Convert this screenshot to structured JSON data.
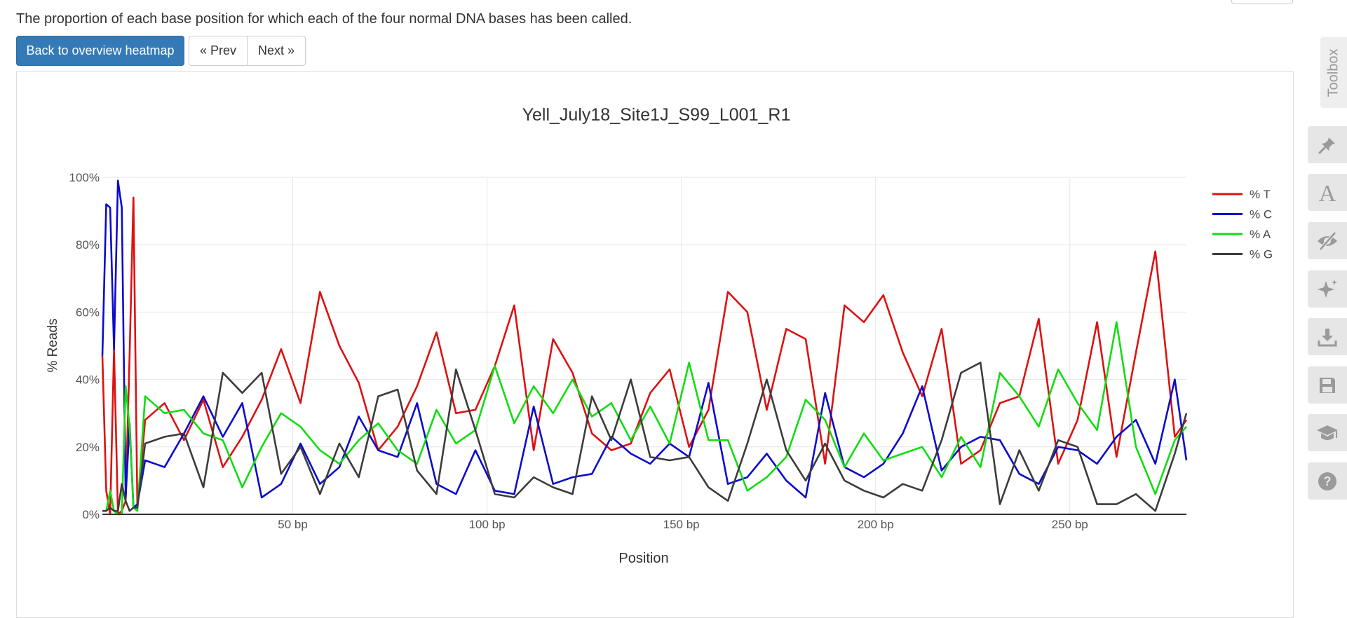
{
  "description": "The proportion of each base position for which each of the four normal DNA bases has been called.",
  "buttons": {
    "back": "Back to overview heatmap",
    "prev": "« Prev",
    "next": "Next »"
  },
  "toolbox": {
    "label": "Toolbox",
    "icons": [
      "pin-icon",
      "font-icon",
      "eye-slash-icon",
      "sparkle-icon",
      "download-icon",
      "save-icon",
      "graduation-cap-icon",
      "help-icon"
    ]
  },
  "colors": {
    "T": "#dd1111",
    "C": "#0b0bcc",
    "A": "#11dd11",
    "G": "#3c3c3c",
    "primary": "#337ab7"
  },
  "chart_data": {
    "type": "line",
    "title": "Yell_July18_Site1J_S99_L001_R1",
    "xlabel": "Position",
    "ylabel": "% Reads",
    "xlim": [
      1,
      280
    ],
    "ylim": [
      0,
      100
    ],
    "x_ticks": [
      50,
      100,
      150,
      200,
      250
    ],
    "x_tick_labels": [
      "50 bp",
      "100 bp",
      "150 bp",
      "200 bp",
      "250 bp"
    ],
    "y_ticks": [
      0,
      20,
      40,
      60,
      80,
      100
    ],
    "y_tick_labels": [
      "0%",
      "20%",
      "40%",
      "60%",
      "80%",
      "100%"
    ],
    "grid": true,
    "legend_position": "right",
    "x": [
      1,
      2,
      3,
      4,
      5,
      6,
      7,
      8,
      9,
      10,
      12,
      17,
      22,
      27,
      32,
      37,
      42,
      47,
      52,
      57,
      62,
      67,
      72,
      77,
      82,
      87,
      92,
      97,
      102,
      107,
      112,
      117,
      122,
      127,
      132,
      137,
      142,
      147,
      152,
      157,
      162,
      167,
      172,
      177,
      182,
      187,
      192,
      197,
      202,
      207,
      212,
      217,
      222,
      227,
      232,
      237,
      242,
      247,
      252,
      257,
      262,
      267,
      272,
      277,
      280
    ],
    "series": [
      {
        "name": "% T",
        "values": [
          47,
          7,
          0,
          49,
          0,
          1,
          4,
          47,
          94,
          2,
          28,
          33,
          22,
          34,
          14,
          23,
          34,
          49,
          33,
          66,
          50,
          39,
          19,
          26,
          38,
          54,
          30,
          31,
          44,
          62,
          19,
          52,
          42,
          24,
          19,
          21,
          36,
          43,
          20,
          31,
          66,
          60,
          31,
          55,
          52,
          15,
          62,
          57,
          65,
          48,
          35,
          55,
          15,
          19,
          33,
          35,
          58,
          15,
          28,
          57,
          17,
          48,
          78,
          23,
          28
        ]
      },
      {
        "name": "% C",
        "values": [
          47,
          92,
          91,
          49,
          99,
          91,
          5,
          27,
          2,
          3,
          16,
          14,
          24,
          35,
          23,
          33,
          5,
          9,
          21,
          9,
          14,
          29,
          19,
          17,
          33,
          9,
          6,
          19,
          7,
          6,
          32,
          9,
          11,
          12,
          23,
          18,
          15,
          21,
          17,
          39,
          9,
          11,
          18,
          10,
          5,
          36,
          14,
          11,
          15,
          24,
          38,
          13,
          20,
          23,
          22,
          12,
          9,
          20,
          19,
          15,
          23,
          28,
          15,
          40,
          16
        ]
      },
      {
        "name": "% A",
        "values": [
          1,
          1,
          7,
          1,
          0,
          0,
          38,
          26,
          2,
          1,
          35,
          30,
          31,
          24,
          22,
          8,
          20,
          30,
          26,
          19,
          15,
          22,
          27,
          19,
          15,
          31,
          21,
          25,
          44,
          27,
          38,
          30,
          40,
          29,
          33,
          22,
          32,
          21,
          45,
          22,
          22,
          7,
          11,
          17,
          34,
          28,
          14,
          24,
          16,
          18,
          20,
          11,
          23,
          14,
          42,
          35,
          26,
          43,
          33,
          25,
          57,
          20,
          6,
          22,
          26
        ]
      },
      {
        "name": "% G",
        "values": [
          1,
          1,
          2,
          1,
          1,
          9,
          4,
          1,
          2,
          2,
          21,
          23,
          24,
          8,
          42,
          36,
          42,
          12,
          20,
          6,
          21,
          11,
          35,
          37,
          13,
          6,
          43,
          25,
          6,
          5,
          11,
          8,
          6,
          35,
          22,
          40,
          17,
          16,
          17,
          8,
          4,
          21,
          40,
          19,
          10,
          21,
          10,
          7,
          5,
          9,
          7,
          22,
          42,
          45,
          3,
          19,
          7,
          22,
          20,
          3,
          3,
          6,
          1,
          18,
          30
        ]
      }
    ]
  }
}
